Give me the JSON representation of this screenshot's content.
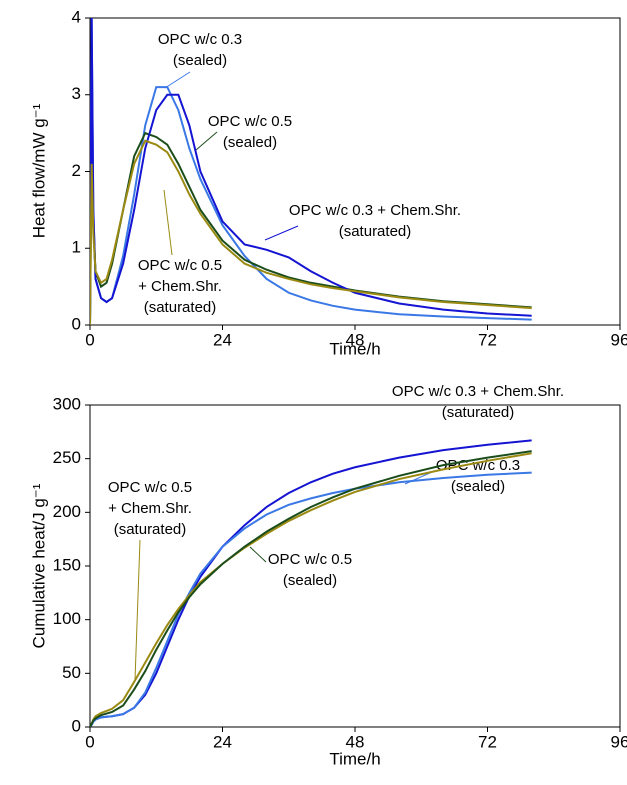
{
  "chart_data": [
    {
      "type": "line",
      "xlabel": "Time/h",
      "ylabel": "Heat flow/mW g⁻¹",
      "xlim": [
        0,
        96
      ],
      "xticks": [
        0,
        24,
        48,
        72,
        96
      ],
      "ylim": [
        0,
        4
      ],
      "yticks": [
        0,
        1,
        2,
        3,
        4
      ],
      "x": [
        0,
        0.3,
        0.6,
        1,
        2,
        3,
        4,
        6,
        8,
        10,
        12,
        14,
        16,
        18,
        20,
        24,
        28,
        32,
        36,
        40,
        44,
        48,
        56,
        64,
        72,
        80
      ],
      "series": [
        {
          "name": [
            "OPC w/c 0.3",
            "(sealed)"
          ],
          "color": "#3a78e6",
          "values": [
            0,
            4,
            1.5,
            0.6,
            0.35,
            0.3,
            0.35,
            0.9,
            1.7,
            2.6,
            3.1,
            3.1,
            2.8,
            2.3,
            1.9,
            1.3,
            0.9,
            0.6,
            0.42,
            0.32,
            0.25,
            0.2,
            0.14,
            0.11,
            0.09,
            0.07
          ]
        },
        {
          "name": [
            "OPC w/c 0.5",
            "(sealed)"
          ],
          "color": "#1b4d1b",
          "values": [
            0,
            2.3,
            1.3,
            0.7,
            0.5,
            0.55,
            0.8,
            1.5,
            2.2,
            2.5,
            2.45,
            2.35,
            2.1,
            1.8,
            1.5,
            1.1,
            0.85,
            0.72,
            0.62,
            0.55,
            0.5,
            0.45,
            0.37,
            0.31,
            0.27,
            0.23
          ]
        },
        {
          "name": [
            "OPC w/c 0.3 + Chem.Shr.",
            "(saturated)"
          ],
          "color": "#1414d2",
          "values": [
            0,
            4,
            1.5,
            0.6,
            0.35,
            0.3,
            0.35,
            0.8,
            1.5,
            2.3,
            2.8,
            3.0,
            3.0,
            2.6,
            2.0,
            1.35,
            1.05,
            0.98,
            0.88,
            0.7,
            0.55,
            0.42,
            0.28,
            0.2,
            0.15,
            0.12
          ]
        },
        {
          "name": [
            "OPC w/c 0.5",
            "+ Chem.Shr.",
            "(saturated)"
          ],
          "color": "#9a8a12",
          "values": [
            0,
            2.1,
            1.2,
            0.7,
            0.55,
            0.6,
            0.85,
            1.5,
            2.1,
            2.4,
            2.35,
            2.25,
            2.0,
            1.7,
            1.45,
            1.05,
            0.8,
            0.68,
            0.6,
            0.53,
            0.48,
            0.44,
            0.36,
            0.3,
            0.26,
            0.22
          ]
        }
      ]
    },
    {
      "type": "line",
      "xlabel": "Time/h",
      "ylabel": "Cumulative heat/J g⁻¹",
      "xlim": [
        0,
        96
      ],
      "xticks": [
        0,
        24,
        48,
        72,
        96
      ],
      "ylim": [
        0,
        300
      ],
      "yticks": [
        0,
        50,
        100,
        150,
        200,
        250,
        300
      ],
      "x": [
        0,
        0.3,
        0.6,
        1,
        2,
        3,
        4,
        6,
        8,
        10,
        12,
        14,
        16,
        18,
        20,
        24,
        28,
        32,
        36,
        40,
        44,
        48,
        56,
        64,
        72,
        80
      ],
      "series": [
        {
          "name": [
            "OPC w/c 0.3 + Chem.Shr.",
            "(saturated)"
          ],
          "color": "#1414d2",
          "values": [
            0,
            2,
            5,
            7,
            9,
            9.5,
            10,
            12,
            18,
            30,
            50,
            75,
            100,
            122,
            140,
            168,
            188,
            205,
            218,
            228,
            236,
            242,
            251,
            258,
            263,
            267
          ]
        },
        {
          "name": [
            "OPC w/c 0.3",
            "(sealed)"
          ],
          "color": "#3a78e6",
          "values": [
            0,
            2,
            5,
            7,
            9,
            9.5,
            10,
            12,
            18,
            32,
            55,
            80,
            105,
            125,
            143,
            168,
            185,
            198,
            207,
            213,
            218,
            222,
            228,
            232,
            235,
            237
          ]
        },
        {
          "name": [
            "OPC w/c 0.5",
            "+ Chem.Shr.",
            "(saturated)"
          ],
          "color": "#9a8a12",
          "values": [
            0,
            3,
            7,
            10,
            13,
            15,
            17,
            25,
            42,
            60,
            78,
            95,
            110,
            123,
            135,
            152,
            167,
            180,
            192,
            202,
            211,
            219,
            231,
            240,
            248,
            255
          ]
        },
        {
          "name": [
            "OPC w/c 0.5",
            "(sealed)"
          ],
          "color": "#1b4d1b",
          "values": [
            0,
            3,
            6,
            8,
            11,
            12.5,
            14,
            20,
            35,
            52,
            72,
            90,
            107,
            121,
            133,
            152,
            168,
            182,
            194,
            205,
            214,
            222,
            234,
            244,
            251,
            257
          ]
        }
      ]
    }
  ]
}
